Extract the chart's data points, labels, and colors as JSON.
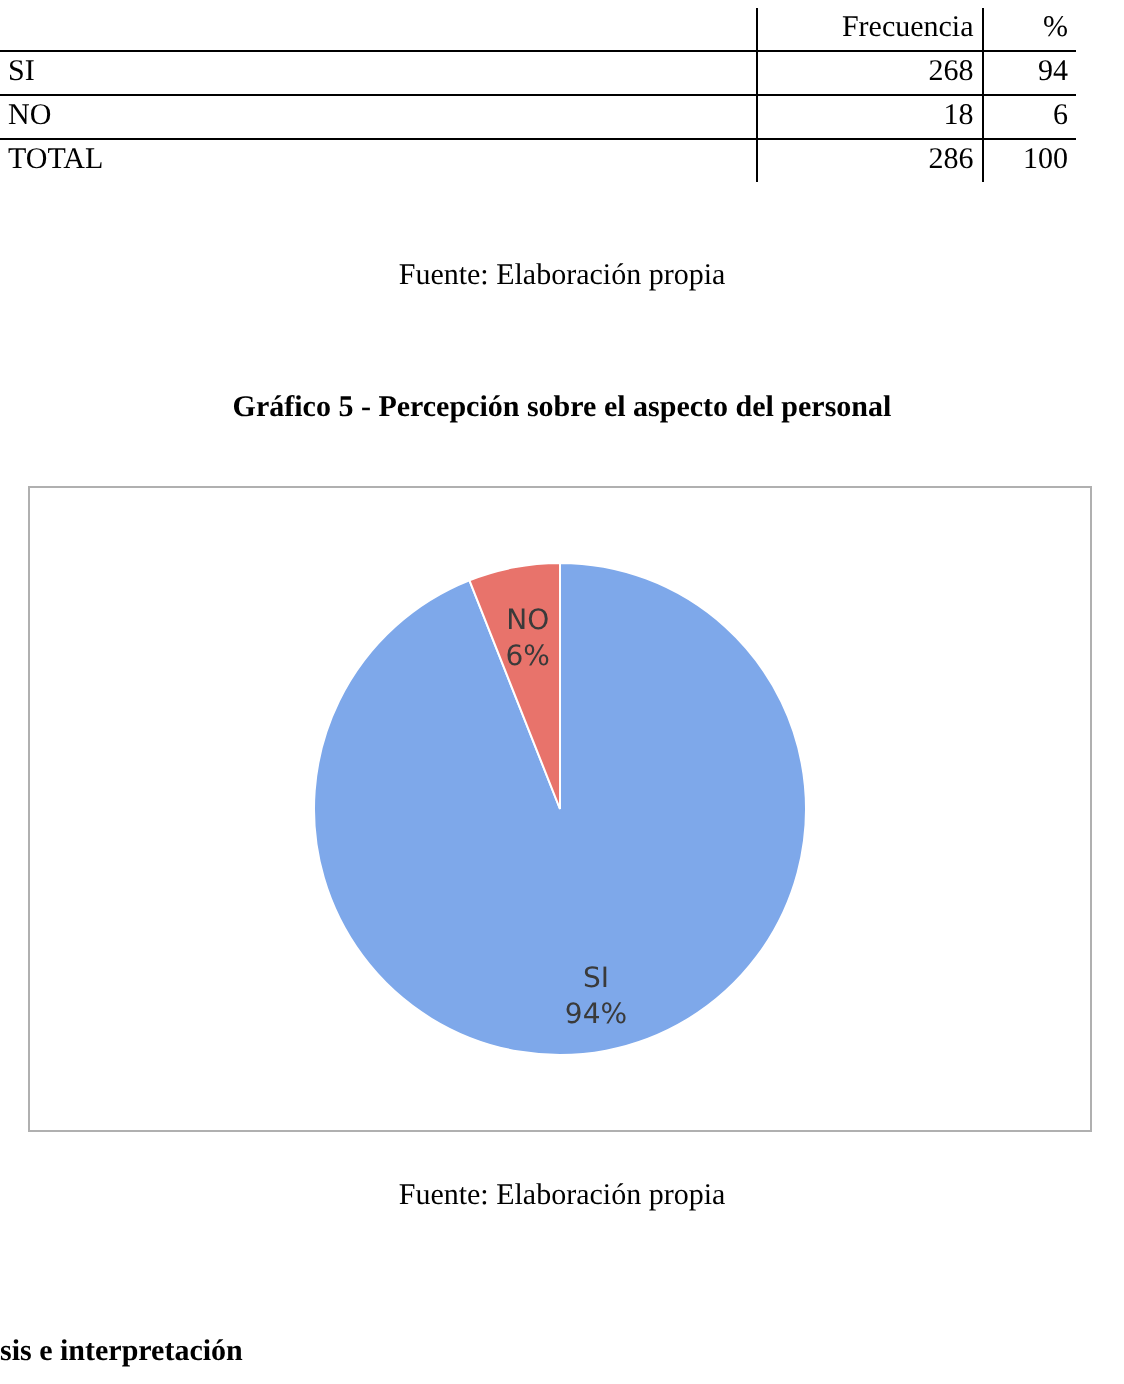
{
  "chart_data": [
    {
      "type": "other",
      "categories": [
        "SI",
        "NO",
        "TOTAL"
      ],
      "series": [
        {
          "name": "Frecuencia",
          "values": [
            268,
            18,
            286
          ]
        },
        {
          "name": "%",
          "values": [
            94,
            6,
            100
          ]
        }
      ],
      "data_labels": true,
      "annotations": [
        "Fuente: Elaboración propia"
      ]
    },
    {
      "type": "pie",
      "title": "Gráfico 5 - Percepción sobre el aspecto del personal",
      "categories": [
        "SI",
        "NO"
      ],
      "values": [
        94,
        6
      ],
      "colors": [
        "#7ea8ea",
        "#e8736b"
      ],
      "value_labels": [
        "94%",
        "6%"
      ],
      "legend": false,
      "annotations": [
        "Fuente: Elaboración propia",
        "sis e interpretación"
      ]
    }
  ]
}
